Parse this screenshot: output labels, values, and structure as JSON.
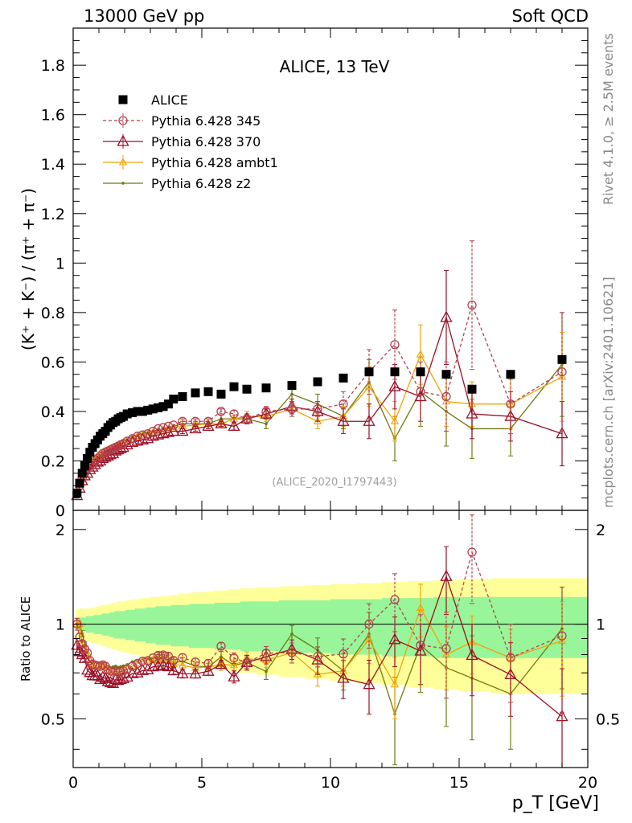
{
  "header": {
    "left": "13000 GeV pp",
    "right": "Soft QCD"
  },
  "side_labels": {
    "rivet": "Rivet 4.1.0, ≥ 2.5M events",
    "mcplots": "mcplots.cern.ch [arXiv:2401.10621]"
  },
  "chart_data": {
    "type": "scatter",
    "title": "ALICE, 13 TeV",
    "analysis_id": "(ALICE_2020_I1797443)",
    "xlabel": "p_T [GeV]",
    "ylabel": "(K⁺ + K⁻) / (π⁺ + π⁻)",
    "ratio_ylabel": "Ratio to ALICE",
    "xlim": [
      0,
      20
    ],
    "ylim": [
      0,
      1.95
    ],
    "ratio_ylim": [
      0.35,
      2.3
    ],
    "x_ticks": [
      "0",
      "5",
      "10",
      "15",
      "20"
    ],
    "y_ticks": [
      "0",
      "0.2",
      "0.4",
      "0.6",
      "0.8",
      "1",
      "1.2",
      "1.4",
      "1.6",
      "1.8"
    ],
    "ratio_ticks": [
      "0.5",
      "1",
      "2"
    ],
    "legend": [
      {
        "name": "ALICE",
        "color": "#000000",
        "marker": "square",
        "style": "none"
      },
      {
        "name": "Pythia 6.428 345",
        "color": "#b5404e",
        "marker": "circle",
        "style": "dashed"
      },
      {
        "name": "Pythia 6.428 370",
        "color": "#9b0f26",
        "marker": "triangle",
        "style": "solid"
      },
      {
        "name": "Pythia 6.428 ambt1",
        "color": "#f0a30a",
        "marker": "triangle-small",
        "style": "solid"
      },
      {
        "name": "Pythia 6.428 z2",
        "color": "#6e7a10",
        "marker": "dot",
        "style": "solid"
      }
    ],
    "x": [
      0.15,
      0.25,
      0.35,
      0.45,
      0.55,
      0.65,
      0.75,
      0.85,
      0.95,
      1.05,
      1.15,
      1.25,
      1.35,
      1.45,
      1.55,
      1.65,
      1.75,
      1.85,
      1.95,
      2.1,
      2.3,
      2.5,
      2.7,
      2.9,
      3.1,
      3.3,
      3.5,
      3.7,
      3.9,
      4.25,
      4.75,
      5.25,
      5.75,
      6.25,
      6.75,
      7.5,
      8.5,
      9.5,
      10.5,
      11.5,
      12.5,
      13.5,
      14.5,
      15.5,
      17.0,
      19.0
    ],
    "ratio_band_outer": [
      0.12,
      0.12,
      0.12,
      0.12,
      0.12,
      0.12,
      0.13,
      0.13,
      0.14,
      0.14,
      0.15,
      0.15,
      0.16,
      0.16,
      0.17,
      0.17,
      0.18,
      0.18,
      0.18,
      0.19,
      0.2,
      0.2,
      0.21,
      0.21,
      0.22,
      0.22,
      0.23,
      0.23,
      0.24,
      0.25,
      0.26,
      0.27,
      0.28,
      0.29,
      0.3,
      0.31,
      0.32,
      0.33,
      0.34,
      0.35,
      0.36,
      0.37,
      0.38,
      0.39,
      0.4,
      0.4
    ],
    "ratio_band_inner": [
      0.05,
      0.05,
      0.05,
      0.05,
      0.06,
      0.06,
      0.06,
      0.07,
      0.07,
      0.07,
      0.08,
      0.08,
      0.08,
      0.09,
      0.09,
      0.1,
      0.1,
      0.1,
      0.1,
      0.11,
      0.11,
      0.12,
      0.12,
      0.13,
      0.13,
      0.14,
      0.14,
      0.14,
      0.15,
      0.15,
      0.16,
      0.16,
      0.17,
      0.17,
      0.18,
      0.18,
      0.19,
      0.19,
      0.2,
      0.2,
      0.21,
      0.21,
      0.22,
      0.22,
      0.22,
      0.22
    ],
    "series": [
      {
        "name": "ALICE",
        "values": [
          0.07,
          0.11,
          0.15,
          0.18,
          0.21,
          0.235,
          0.255,
          0.27,
          0.285,
          0.3,
          0.31,
          0.32,
          0.335,
          0.345,
          0.355,
          0.36,
          0.37,
          0.375,
          0.38,
          0.39,
          0.395,
          0.4,
          0.4,
          0.405,
          0.41,
          0.415,
          0.42,
          0.43,
          0.45,
          0.46,
          0.475,
          0.48,
          0.47,
          0.5,
          0.49,
          0.495,
          0.505,
          0.52,
          0.535,
          0.56,
          0.56,
          0.56,
          0.55,
          0.49,
          0.55,
          0.61
        ],
        "errors": [
          0.005,
          0.005,
          0.005,
          0.005,
          0.005,
          0.005,
          0.005,
          0.005,
          0.005,
          0.005,
          0.005,
          0.005,
          0.005,
          0.005,
          0.005,
          0.005,
          0.005,
          0.005,
          0.005,
          0.005,
          0.005,
          0.005,
          0.005,
          0.005,
          0.005,
          0.005,
          0.005,
          0.005,
          0.005,
          0.005,
          0.005,
          0.005,
          0.005,
          0.005,
          0.005,
          0.005,
          0.005,
          0.005,
          0.01,
          0.01,
          0.01,
          0.01,
          0.01,
          0.01,
          0.01,
          0.01
        ]
      },
      {
        "name": "Pythia 6.428 345",
        "values": [
          0.07,
          0.1,
          0.13,
          0.15,
          0.17,
          0.18,
          0.19,
          0.2,
          0.21,
          0.22,
          0.23,
          0.235,
          0.24,
          0.245,
          0.25,
          0.255,
          0.26,
          0.265,
          0.27,
          0.28,
          0.29,
          0.3,
          0.305,
          0.31,
          0.32,
          0.33,
          0.335,
          0.34,
          0.345,
          0.36,
          0.36,
          0.36,
          0.4,
          0.39,
          0.37,
          0.4,
          0.41,
          0.41,
          0.43,
          0.56,
          0.67,
          0.48,
          0.46,
          0.83,
          0.43,
          0.56
        ],
        "errors": [
          0.003,
          0.003,
          0.003,
          0.003,
          0.003,
          0.003,
          0.003,
          0.003,
          0.003,
          0.003,
          0.003,
          0.003,
          0.003,
          0.004,
          0.004,
          0.004,
          0.004,
          0.004,
          0.004,
          0.005,
          0.005,
          0.005,
          0.006,
          0.006,
          0.006,
          0.007,
          0.007,
          0.008,
          0.008,
          0.01,
          0.01,
          0.01,
          0.01,
          0.015,
          0.015,
          0.02,
          0.03,
          0.03,
          0.05,
          0.09,
          0.14,
          0.12,
          0.14,
          0.26,
          0.12,
          0.24
        ]
      },
      {
        "name": "Pythia 6.428 370",
        "values": [
          0.06,
          0.09,
          0.12,
          0.14,
          0.15,
          0.165,
          0.175,
          0.185,
          0.195,
          0.2,
          0.21,
          0.215,
          0.22,
          0.225,
          0.23,
          0.24,
          0.245,
          0.25,
          0.255,
          0.265,
          0.275,
          0.28,
          0.285,
          0.29,
          0.3,
          0.305,
          0.31,
          0.315,
          0.32,
          0.32,
          0.33,
          0.34,
          0.35,
          0.34,
          0.37,
          0.39,
          0.42,
          0.4,
          0.36,
          0.36,
          0.5,
          0.46,
          0.78,
          0.39,
          0.38,
          0.31
        ],
        "errors": [
          0.003,
          0.003,
          0.003,
          0.003,
          0.003,
          0.003,
          0.003,
          0.003,
          0.003,
          0.003,
          0.003,
          0.003,
          0.003,
          0.004,
          0.004,
          0.004,
          0.004,
          0.004,
          0.004,
          0.005,
          0.005,
          0.005,
          0.006,
          0.006,
          0.006,
          0.007,
          0.007,
          0.008,
          0.008,
          0.01,
          0.01,
          0.01,
          0.01,
          0.015,
          0.02,
          0.02,
          0.03,
          0.04,
          0.05,
          0.07,
          0.09,
          0.1,
          0.19,
          0.1,
          0.1,
          0.13
        ]
      },
      {
        "name": "Pythia 6.428 ambt1",
        "values": [
          0.07,
          0.11,
          0.13,
          0.15,
          0.17,
          0.18,
          0.19,
          0.2,
          0.21,
          0.22,
          0.23,
          0.235,
          0.24,
          0.245,
          0.25,
          0.255,
          0.26,
          0.265,
          0.27,
          0.28,
          0.29,
          0.3,
          0.305,
          0.31,
          0.315,
          0.32,
          0.325,
          0.33,
          0.335,
          0.34,
          0.345,
          0.35,
          0.35,
          0.37,
          0.38,
          0.38,
          0.41,
          0.36,
          0.38,
          0.5,
          0.36,
          0.63,
          0.44,
          0.43,
          0.43,
          0.54
        ],
        "errors": [
          0.003,
          0.003,
          0.003,
          0.003,
          0.003,
          0.003,
          0.003,
          0.003,
          0.003,
          0.003,
          0.003,
          0.003,
          0.003,
          0.004,
          0.004,
          0.004,
          0.004,
          0.004,
          0.004,
          0.005,
          0.005,
          0.005,
          0.006,
          0.006,
          0.006,
          0.007,
          0.007,
          0.008,
          0.008,
          0.01,
          0.01,
          0.01,
          0.015,
          0.015,
          0.02,
          0.02,
          0.03,
          0.03,
          0.04,
          0.08,
          0.08,
          0.12,
          0.1,
          0.09,
          0.1,
          0.18
        ]
      },
      {
        "name": "Pythia 6.428 z2",
        "values": [
          0.07,
          0.11,
          0.14,
          0.155,
          0.17,
          0.185,
          0.195,
          0.205,
          0.215,
          0.225,
          0.235,
          0.24,
          0.245,
          0.25,
          0.26,
          0.265,
          0.27,
          0.275,
          0.28,
          0.29,
          0.3,
          0.305,
          0.31,
          0.315,
          0.32,
          0.325,
          0.33,
          0.335,
          0.34,
          0.35,
          0.35,
          0.35,
          0.37,
          0.37,
          0.37,
          0.35,
          0.47,
          0.43,
          0.38,
          0.52,
          0.29,
          0.48,
          0.4,
          0.33,
          0.33,
          0.59
        ],
        "errors": [
          0.003,
          0.003,
          0.003,
          0.003,
          0.003,
          0.003,
          0.003,
          0.003,
          0.003,
          0.003,
          0.003,
          0.003,
          0.003,
          0.004,
          0.004,
          0.004,
          0.004,
          0.004,
          0.004,
          0.005,
          0.005,
          0.005,
          0.006,
          0.006,
          0.006,
          0.007,
          0.007,
          0.008,
          0.008,
          0.01,
          0.01,
          0.01,
          0.015,
          0.015,
          0.02,
          0.02,
          0.03,
          0.04,
          0.05,
          0.09,
          0.09,
          0.14,
          0.14,
          0.12,
          0.11,
          0.21
        ]
      }
    ]
  }
}
